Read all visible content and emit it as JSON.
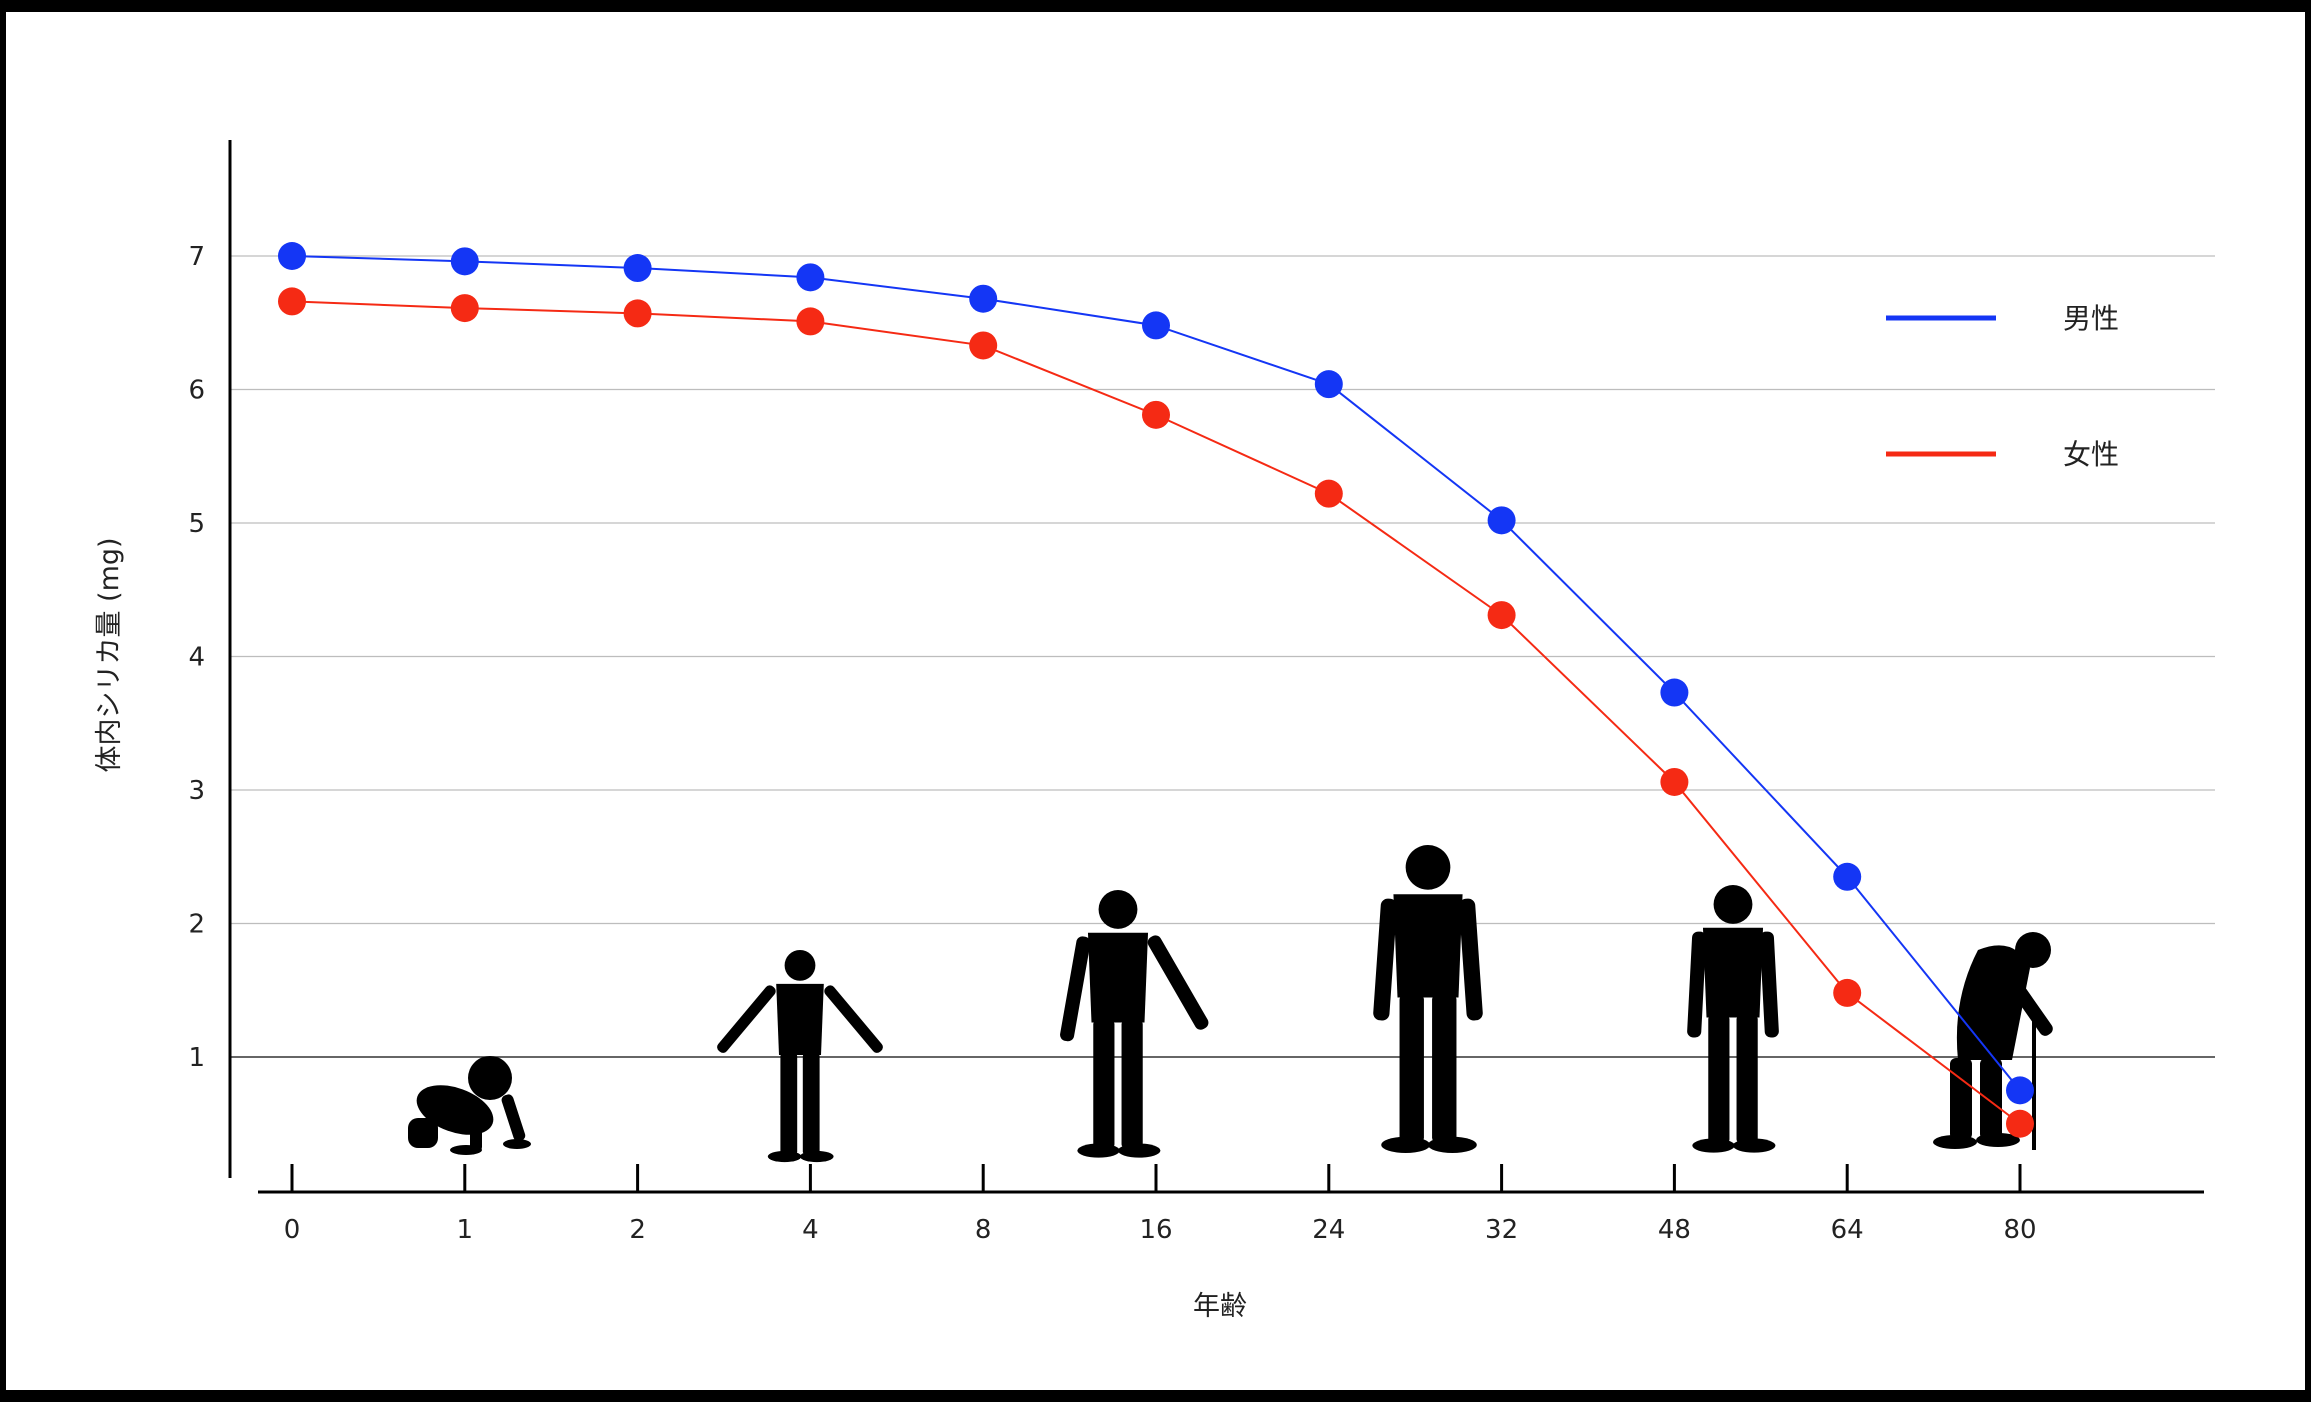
{
  "chart_data": {
    "type": "line",
    "categories": [
      "0",
      "1",
      "2",
      "4",
      "8",
      "16",
      "24",
      "32",
      "48",
      "64",
      "80"
    ],
    "series": [
      {
        "name": "男性",
        "color": "#1436f5",
        "values": [
          7.0,
          6.96,
          6.91,
          6.84,
          6.68,
          6.48,
          6.04,
          5.02,
          3.73,
          2.35,
          0.75
        ]
      },
      {
        "name": "女性",
        "color": "#f52a14",
        "values": [
          6.66,
          6.61,
          6.57,
          6.51,
          6.33,
          5.81,
          5.22,
          4.31,
          3.06,
          1.48,
          0.5
        ]
      }
    ],
    "yticks": [
      "1",
      "2",
      "3",
      "4",
      "5",
      "6",
      "7"
    ],
    "ylim": [
      0.2,
      7.8
    ],
    "grid": true,
    "xlabel": "年齢",
    "ylabel": "体内シリカ量 (mg)",
    "legend_position": "top-right",
    "illustrations": [
      "baby-silhouette",
      "child-silhouette",
      "teen-silhouette",
      "adult-man-silhouette",
      "middle-aged-man-silhouette",
      "elderly-man-with-cane-silhouette"
    ]
  }
}
